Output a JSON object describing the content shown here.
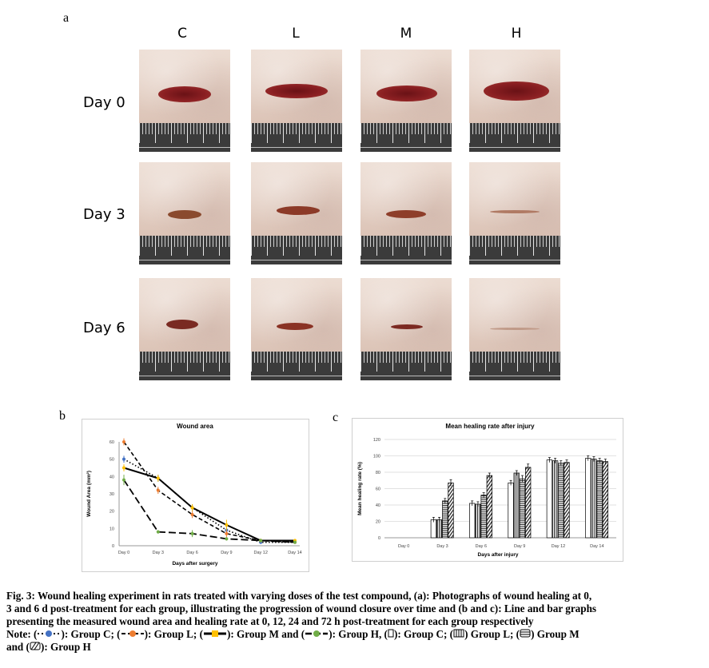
{
  "figure": {
    "panel_a_label": "a",
    "panel_b_label": "b",
    "panel_c_label": "c",
    "columns": [
      "C",
      "L",
      "M",
      "H"
    ],
    "rows": [
      "Day 0",
      "Day 3",
      "Day 6"
    ],
    "caption_lines": [
      "Fig. 3: Wound healing experiment in rats treated with varying doses of the test compound, (a): Photographs of wound healing at 0,",
      "3 and 6 d post-treatment for each group, illustrating the progression of wound closure over time and (b and c): Line and bar graphs",
      "presenting the measured wound area and healing rate at 0, 12, 24 and 72 h post-treatment for each group respectively"
    ],
    "note": {
      "prefix": "Note: (",
      "c_label": "): Group C; (",
      "l_label": "): Group L; (",
      "m_label": "): Group M and (",
      "h_label": "): Group H, (",
      "bar_c_label": "): Group C; (",
      "bar_l_label": ") Group L; (",
      "bar_m_label": ") Group M",
      "and_word": "and (",
      "bar_h_label": "): Group H"
    }
  },
  "chart_data": [
    {
      "type": "line",
      "title": "Wound area",
      "xlabel": "Days after surgery",
      "ylabel": "Wound Area (mm²)",
      "categories": [
        "Day 0",
        "Day 3",
        "Day 6",
        "Day 9",
        "Day 12",
        "Day 14"
      ],
      "ylim": [
        0,
        60
      ],
      "yticks": [
        0,
        10,
        20,
        30,
        40,
        50,
        60
      ],
      "series": [
        {
          "name": "Group C",
          "values": [
            50,
            39,
            22,
            9,
            2,
            2
          ],
          "errors": [
            2,
            2,
            2,
            2,
            1,
            1
          ],
          "color": "#4472c4",
          "style": "dotted"
        },
        {
          "name": "Group L",
          "values": [
            60,
            32,
            18,
            7,
            3,
            2
          ],
          "errors": [
            2,
            2,
            2,
            2,
            1,
            1
          ],
          "color": "#ed7d31",
          "style": "dashed"
        },
        {
          "name": "Group M",
          "values": [
            45,
            39,
            22,
            12,
            3,
            3
          ],
          "errors": [
            2,
            2,
            2,
            3,
            1,
            1
          ],
          "color": "#ffc000",
          "style": "solid"
        },
        {
          "name": "Group H",
          "values": [
            38,
            8,
            7,
            4,
            3,
            2
          ],
          "errors": [
            3,
            1,
            2,
            1,
            1,
            1
          ],
          "color": "#70ad47",
          "style": "longdash"
        }
      ]
    },
    {
      "type": "bar",
      "title": "Mean healing rate after injury",
      "xlabel": "Days after injury",
      "ylabel": "Mean healing rate (%)",
      "categories": [
        "Day 0",
        "Day 3",
        "Day 6",
        "Day 9",
        "Day 12",
        "Day 14"
      ],
      "ylim": [
        0,
        120
      ],
      "yticks": [
        0,
        20,
        40,
        60,
        80,
        100,
        120
      ],
      "series": [
        {
          "name": "Group C",
          "pattern": "open",
          "values": [
            0,
            22,
            42,
            67,
            95,
            97
          ],
          "errors": [
            0,
            3,
            3,
            3,
            3,
            3
          ]
        },
        {
          "name": "Group L",
          "pattern": "vertical",
          "values": [
            0,
            22,
            41,
            79,
            94,
            96
          ],
          "errors": [
            0,
            3,
            3,
            3,
            3,
            3
          ]
        },
        {
          "name": "Group M",
          "pattern": "horizontal",
          "values": [
            0,
            45,
            52,
            72,
            91,
            94
          ],
          "errors": [
            0,
            3,
            3,
            4,
            3,
            3
          ]
        },
        {
          "name": "Group H",
          "pattern": "diagonal",
          "values": [
            0,
            67,
            76,
            86,
            92,
            93
          ],
          "errors": [
            0,
            4,
            3,
            4,
            3,
            3
          ]
        }
      ]
    }
  ]
}
